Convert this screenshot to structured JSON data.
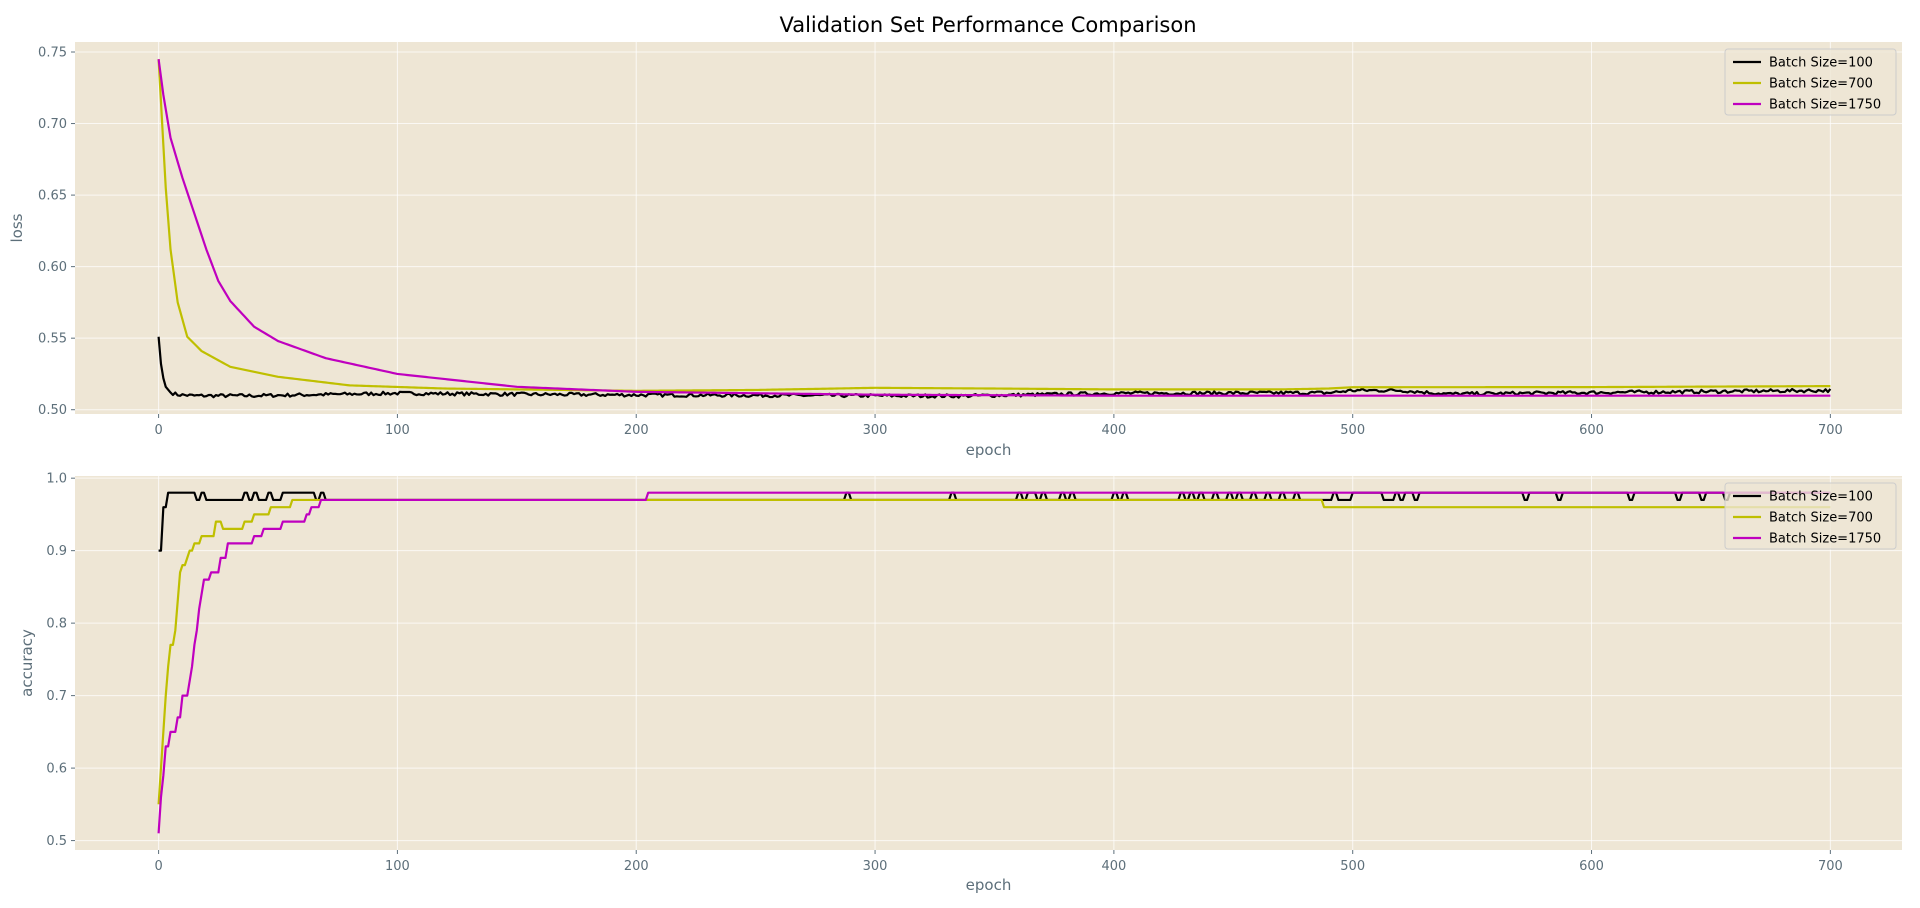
{
  "figure": {
    "title": "Validation Set Performance Comparison",
    "background": "#ffffff",
    "axes_background": "#eee6d5",
    "grid_color": "#ffffff",
    "tick_color": "#5d6f7a",
    "label_color": "#5d6f7a"
  },
  "chart_data": [
    {
      "type": "line",
      "title": "Validation Set Performance Comparison",
      "xlabel": "epoch",
      "ylabel": "loss",
      "xlim": [
        -35,
        730
      ],
      "ylim": [
        0.497,
        0.757
      ],
      "xticks": [
        0,
        100,
        200,
        300,
        400,
        500,
        600,
        700
      ],
      "yticks": [
        0.5,
        0.55,
        0.6,
        0.65,
        0.7,
        0.75
      ],
      "ytick_labels": [
        "0.50",
        "0.55",
        "0.60",
        "0.65",
        "0.70",
        "0.75"
      ],
      "grid": true,
      "legend": "top-right",
      "series": [
        {
          "name": "Batch Size=100",
          "color": "#000000",
          "noise": 0.0012,
          "points": [
            [
              0,
              0.551
            ],
            [
              1,
              0.532
            ],
            [
              2,
              0.522
            ],
            [
              3,
              0.516
            ],
            [
              5,
              0.512
            ],
            [
              8,
              0.5105
            ],
            [
              15,
              0.5098
            ],
            [
              40,
              0.5098
            ],
            [
              100,
              0.5115
            ],
            [
              150,
              0.5108
            ],
            [
              200,
              0.5103
            ],
            [
              300,
              0.5098
            ],
            [
              335,
              0.5096
            ],
            [
              400,
              0.5115
            ],
            [
              490,
              0.5118
            ],
            [
              500,
              0.5135
            ],
            [
              520,
              0.5135
            ],
            [
              540,
              0.511
            ],
            [
              600,
              0.512
            ],
            [
              700,
              0.5135
            ]
          ]
        },
        {
          "name": "Batch Size=700",
          "color": "#bfbf00",
          "noise": 0,
          "points": [
            [
              0,
              0.745
            ],
            [
              3,
              0.655
            ],
            [
              5,
              0.612
            ],
            [
              8,
              0.575
            ],
            [
              12,
              0.551
            ],
            [
              18,
              0.541
            ],
            [
              30,
              0.53
            ],
            [
              50,
              0.523
            ],
            [
              80,
              0.517
            ],
            [
              120,
              0.5148
            ],
            [
              200,
              0.5132
            ],
            [
              250,
              0.5138
            ],
            [
              300,
              0.5153
            ],
            [
              350,
              0.5148
            ],
            [
              400,
              0.5142
            ],
            [
              470,
              0.5142
            ],
            [
              490,
              0.5148
            ],
            [
              500,
              0.5157
            ],
            [
              600,
              0.5158
            ],
            [
              700,
              0.5165
            ]
          ]
        },
        {
          "name": "Batch Size=1750",
          "color": "#bf00bf",
          "noise": 0,
          "points": [
            [
              0,
              0.745
            ],
            [
              2,
              0.72
            ],
            [
              5,
              0.69
            ],
            [
              10,
              0.662
            ],
            [
              15,
              0.637
            ],
            [
              20,
              0.612
            ],
            [
              25,
              0.59
            ],
            [
              30,
              0.576
            ],
            [
              40,
              0.558
            ],
            [
              50,
              0.548
            ],
            [
              70,
              0.536
            ],
            [
              100,
              0.525
            ],
            [
              150,
              0.516
            ],
            [
              200,
              0.5125
            ],
            [
              300,
              0.5105
            ],
            [
              400,
              0.5098
            ],
            [
              500,
              0.5098
            ],
            [
              700,
              0.5098
            ]
          ]
        }
      ]
    },
    {
      "type": "line",
      "xlabel": "epoch",
      "ylabel": "accuracy",
      "xlim": [
        -35,
        730
      ],
      "ylim": [
        0.487,
        1.003
      ],
      "xticks": [
        0,
        100,
        200,
        300,
        400,
        500,
        600,
        700
      ],
      "yticks": [
        0.5,
        0.6,
        0.7,
        0.8,
        0.9,
        1.0
      ],
      "ytick_labels": [
        "0.5",
        "0.6",
        "0.7",
        "0.8",
        "0.9",
        "1.0"
      ],
      "grid": true,
      "legend": "top-right",
      "series": [
        {
          "name": "Batch Size=100",
          "color": "#000000",
          "steps": [
            [
              0,
              0.9
            ],
            [
              2,
              0.96
            ],
            [
              4,
              0.98
            ],
            [
              16,
              0.97
            ],
            [
              18,
              0.98
            ],
            [
              20,
              0.97
            ],
            [
              36,
              0.98
            ],
            [
              38,
              0.97
            ],
            [
              40,
              0.98
            ],
            [
              42,
              0.97
            ],
            [
              46,
              0.98
            ],
            [
              48,
              0.97
            ],
            [
              52,
              0.98
            ],
            [
              66,
              0.97
            ],
            [
              68,
              0.98
            ],
            [
              70,
              0.97
            ],
            [
              288,
              0.98
            ],
            [
              290,
              0.97
            ],
            [
              332,
              0.98
            ],
            [
              334,
              0.97
            ],
            [
              360,
              0.98
            ],
            [
              362,
              0.97
            ],
            [
              364,
              0.98
            ],
            [
              368,
              0.97
            ],
            [
              370,
              0.98
            ],
            [
              372,
              0.97
            ],
            [
              378,
              0.98
            ],
            [
              380,
              0.97
            ],
            [
              382,
              0.98
            ],
            [
              384,
              0.97
            ],
            [
              400,
              0.98
            ],
            [
              402,
              0.97
            ],
            [
              404,
              0.98
            ],
            [
              406,
              0.97
            ],
            [
              428,
              0.98
            ],
            [
              430,
              0.97
            ],
            [
              432,
              0.98
            ],
            [
              434,
              0.97
            ],
            [
              436,
              0.98
            ],
            [
              438,
              0.97
            ],
            [
              442,
              0.98
            ],
            [
              444,
              0.97
            ],
            [
              448,
              0.98
            ],
            [
              450,
              0.97
            ],
            [
              452,
              0.98
            ],
            [
              454,
              0.97
            ],
            [
              458,
              0.98
            ],
            [
              460,
              0.97
            ],
            [
              464,
              0.98
            ],
            [
              466,
              0.97
            ],
            [
              470,
              0.98
            ],
            [
              472,
              0.97
            ],
            [
              476,
              0.98
            ],
            [
              478,
              0.97
            ],
            [
              492,
              0.98
            ],
            [
              494,
              0.97
            ],
            [
              500,
              0.98
            ],
            [
              513,
              0.97
            ],
            [
              518,
              0.98
            ],
            [
              520,
              0.97
            ],
            [
              522,
              0.98
            ],
            [
              526,
              0.97
            ],
            [
              528,
              0.98
            ],
            [
              572,
              0.97
            ],
            [
              574,
              0.98
            ],
            [
              586,
              0.97
            ],
            [
              588,
              0.98
            ],
            [
              616,
              0.97
            ],
            [
              618,
              0.98
            ],
            [
              636,
              0.97
            ],
            [
              638,
              0.98
            ],
            [
              646,
              0.97
            ],
            [
              648,
              0.98
            ],
            [
              656,
              0.97
            ],
            [
              658,
              0.98
            ],
            [
              700,
              0.98
            ]
          ]
        },
        {
          "name": "Batch Size=700",
          "color": "#bfbf00",
          "steps": [
            [
              0,
              0.55
            ],
            [
              1,
              0.6
            ],
            [
              2,
              0.65
            ],
            [
              3,
              0.7
            ],
            [
              4,
              0.74
            ],
            [
              5,
              0.77
            ],
            [
              7,
              0.79
            ],
            [
              8,
              0.83
            ],
            [
              9,
              0.87
            ],
            [
              10,
              0.88
            ],
            [
              12,
              0.89
            ],
            [
              13,
              0.9
            ],
            [
              15,
              0.91
            ],
            [
              18,
              0.92
            ],
            [
              24,
              0.94
            ],
            [
              27,
              0.93
            ],
            [
              36,
              0.94
            ],
            [
              40,
              0.95
            ],
            [
              47,
              0.96
            ],
            [
              56,
              0.97
            ],
            [
              488,
              0.96
            ],
            [
              700,
              0.96
            ]
          ]
        },
        {
          "name": "Batch Size=1750",
          "color": "#bf00bf",
          "steps": [
            [
              0,
              0.51
            ],
            [
              1,
              0.56
            ],
            [
              2,
              0.59
            ],
            [
              3,
              0.63
            ],
            [
              5,
              0.65
            ],
            [
              8,
              0.67
            ],
            [
              10,
              0.7
            ],
            [
              13,
              0.72
            ],
            [
              14,
              0.74
            ],
            [
              15,
              0.77
            ],
            [
              16,
              0.79
            ],
            [
              17,
              0.82
            ],
            [
              18,
              0.84
            ],
            [
              19,
              0.86
            ],
            [
              22,
              0.87
            ],
            [
              26,
              0.89
            ],
            [
              29,
              0.91
            ],
            [
              40,
              0.92
            ],
            [
              44,
              0.93
            ],
            [
              52,
              0.94
            ],
            [
              62,
              0.95
            ],
            [
              64,
              0.96
            ],
            [
              68,
              0.97
            ],
            [
              205,
              0.98
            ],
            [
              700,
              0.98
            ]
          ]
        }
      ]
    }
  ]
}
